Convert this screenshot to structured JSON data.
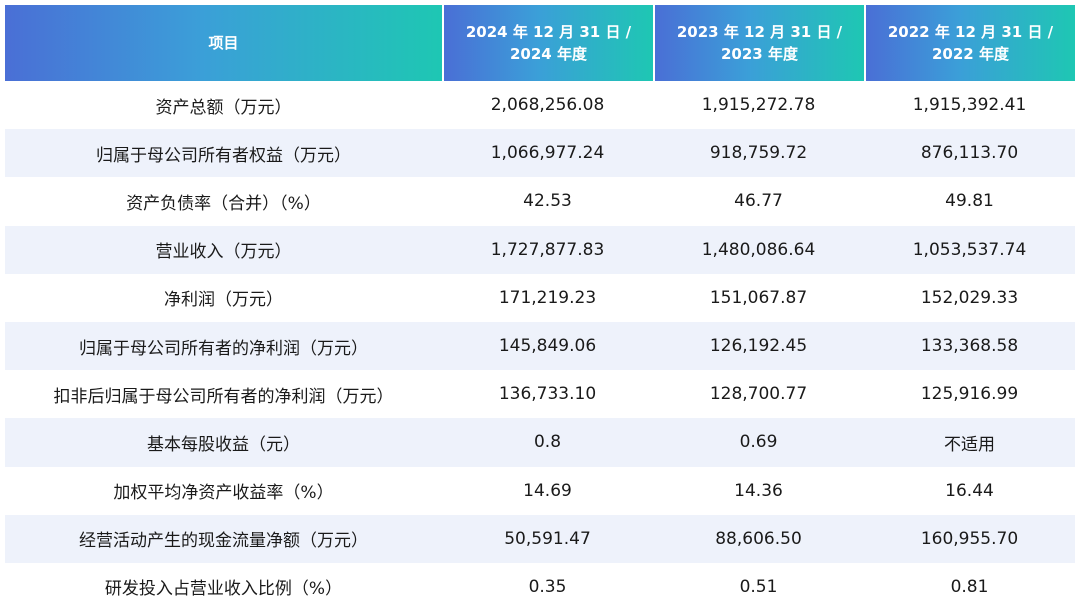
{
  "header": {
    "col0": "项目",
    "col1_line1": "2024 年 12 月 31 日 /",
    "col1_line2": "2024 年度",
    "col2_line1": "2023 年 12 月 31 日 /",
    "col2_line2": "2023 年度",
    "col3_line1": "2022 年 12 月 31 日 /",
    "col3_line2": "2022 年度"
  },
  "colors": {
    "header_gradient_start": "#4a6fd6",
    "header_gradient_end": "#1ec7b3",
    "alt_row": "#eef2fb"
  },
  "rows": [
    {
      "item": "资产总额（万元）",
      "y2024": "2,068,256.08",
      "y2023": "1,915,272.78",
      "y2022": "1,915,392.41"
    },
    {
      "item": "归属于母公司所有者权益（万元）",
      "y2024": "1,066,977.24",
      "y2023": "918,759.72",
      "y2022": "876,113.70"
    },
    {
      "item": "资产负债率（合并）（%）",
      "y2024": "42.53",
      "y2023": "46.77",
      "y2022": "49.81"
    },
    {
      "item": "营业收入（万元）",
      "y2024": "1,727,877.83",
      "y2023": "1,480,086.64",
      "y2022": "1,053,537.74"
    },
    {
      "item": "净利润（万元）",
      "y2024": "171,219.23",
      "y2023": "151,067.87",
      "y2022": "152,029.33"
    },
    {
      "item": "归属于母公司所有者的净利润（万元）",
      "y2024": "145,849.06",
      "y2023": "126,192.45",
      "y2022": "133,368.58"
    },
    {
      "item": "扣非后归属于母公司所有者的净利润（万元）",
      "y2024": "136,733.10",
      "y2023": "128,700.77",
      "y2022": "125,916.99"
    },
    {
      "item": "基本每股收益（元）",
      "y2024": "0.8",
      "y2023": "0.69",
      "y2022": "不适用"
    },
    {
      "item": "加权平均净资产收益率（%）",
      "y2024": "14.69",
      "y2023": "14.36",
      "y2022": "16.44"
    },
    {
      "item": "经营活动产生的现金流量净额（万元）",
      "y2024": "50,591.47",
      "y2023": "88,606.50",
      "y2022": "160,955.70"
    },
    {
      "item": "研发投入占营业收入比例（%）",
      "y2024": "0.35",
      "y2023": "0.51",
      "y2022": "0.81"
    }
  ]
}
